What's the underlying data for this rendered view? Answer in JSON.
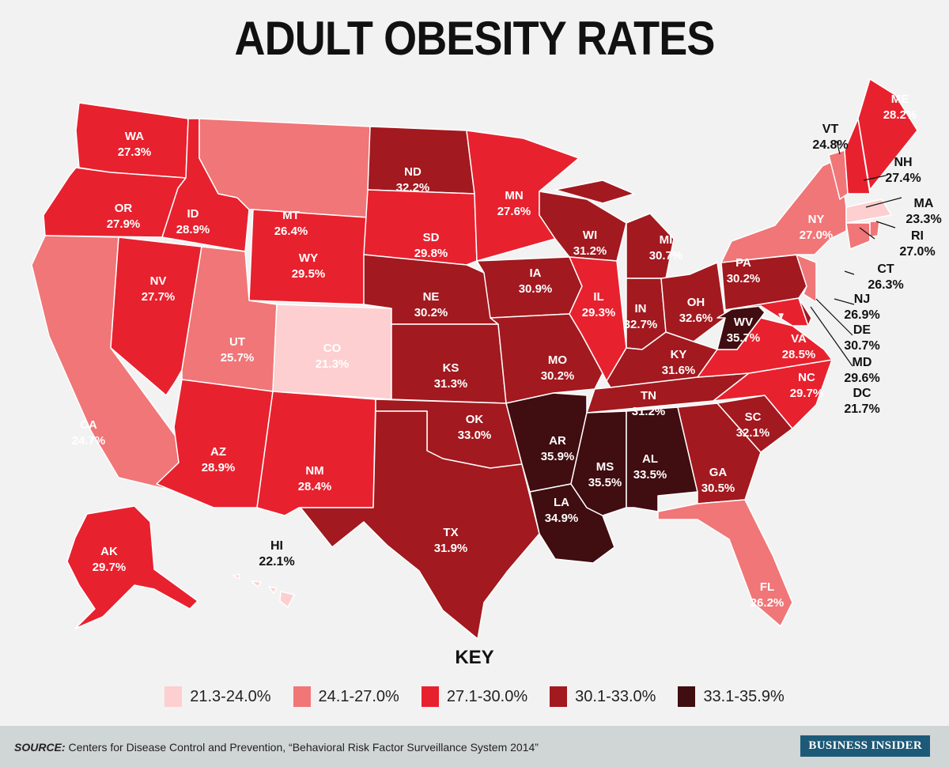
{
  "title": "ADULT OBESITY RATES",
  "key": {
    "title": "KEY",
    "bins": [
      {
        "label": "21.3-24.0%",
        "color": "#fdcfd0"
      },
      {
        "label": "24.1-27.0%",
        "color": "#f07678"
      },
      {
        "label": "27.1-30.0%",
        "color": "#e8212e"
      },
      {
        "label": "30.1-33.0%",
        "color": "#a2191f"
      },
      {
        "label": "33.1-35.9%",
        "color": "#400d10"
      }
    ]
  },
  "states": {
    "WA": {
      "code": "WA",
      "value": "27.3%",
      "bin": 2
    },
    "OR": {
      "code": "OR",
      "value": "27.9%",
      "bin": 2
    },
    "CA": {
      "code": "CA",
      "value": "24.7%",
      "bin": 1
    },
    "NV": {
      "code": "NV",
      "value": "27.7%",
      "bin": 2
    },
    "ID": {
      "code": "ID",
      "value": "28.9%",
      "bin": 2
    },
    "MT": {
      "code": "MT",
      "value": "26.4%",
      "bin": 1
    },
    "WY": {
      "code": "WY",
      "value": "29.5%",
      "bin": 2
    },
    "UT": {
      "code": "UT",
      "value": "25.7%",
      "bin": 1
    },
    "CO": {
      "code": "CO",
      "value": "21.3%",
      "bin": 0
    },
    "AZ": {
      "code": "AZ",
      "value": "28.9%",
      "bin": 2
    },
    "NM": {
      "code": "NM",
      "value": "28.4%",
      "bin": 2
    },
    "ND": {
      "code": "ND",
      "value": "32.2%",
      "bin": 3
    },
    "SD": {
      "code": "SD",
      "value": "29.8%",
      "bin": 2
    },
    "NE": {
      "code": "NE",
      "value": "30.2%",
      "bin": 3
    },
    "KS": {
      "code": "KS",
      "value": "31.3%",
      "bin": 3
    },
    "OK": {
      "code": "OK",
      "value": "33.0%",
      "bin": 3
    },
    "TX": {
      "code": "TX",
      "value": "31.9%",
      "bin": 3
    },
    "MN": {
      "code": "MN",
      "value": "27.6%",
      "bin": 2
    },
    "IA": {
      "code": "IA",
      "value": "30.9%",
      "bin": 3
    },
    "MO": {
      "code": "MO",
      "value": "30.2%",
      "bin": 3
    },
    "AR": {
      "code": "AR",
      "value": "35.9%",
      "bin": 4
    },
    "LA": {
      "code": "LA",
      "value": "34.9%",
      "bin": 4
    },
    "WI": {
      "code": "WI",
      "value": "31.2%",
      "bin": 3
    },
    "IL": {
      "code": "IL",
      "value": "29.3%",
      "bin": 2
    },
    "MI": {
      "code": "MI",
      "value": "30.7%",
      "bin": 3
    },
    "IN": {
      "code": "IN",
      "value": "32.7%",
      "bin": 3
    },
    "OH": {
      "code": "OH",
      "value": "32.6%",
      "bin": 3
    },
    "KY": {
      "code": "KY",
      "value": "31.6%",
      "bin": 3
    },
    "TN": {
      "code": "TN",
      "value": "31.2%",
      "bin": 3
    },
    "MS": {
      "code": "MS",
      "value": "35.5%",
      "bin": 4
    },
    "AL": {
      "code": "AL",
      "value": "33.5%",
      "bin": 4
    },
    "GA": {
      "code": "GA",
      "value": "30.5%",
      "bin": 3
    },
    "FL": {
      "code": "FL",
      "value": "26.2%",
      "bin": 1
    },
    "SC": {
      "code": "SC",
      "value": "32.1%",
      "bin": 3
    },
    "NC": {
      "code": "NC",
      "value": "29.7%",
      "bin": 2
    },
    "VA": {
      "code": "VA",
      "value": "28.5%",
      "bin": 2
    },
    "WV": {
      "code": "WV",
      "value": "35.7%",
      "bin": 4
    },
    "PA": {
      "code": "PA",
      "value": "30.2%",
      "bin": 3
    },
    "MD": {
      "code": "MD",
      "value": "29.6%",
      "bin": 2
    },
    "DE": {
      "code": "DE",
      "value": "30.7%",
      "bin": 3
    },
    "NJ": {
      "code": "NJ",
      "value": "26.9%",
      "bin": 1
    },
    "NY": {
      "code": "NY",
      "value": "27.0%",
      "bin": 1
    },
    "VT": {
      "code": "VT",
      "value": "24.8%",
      "bin": 1
    },
    "NH": {
      "code": "NH",
      "value": "27.4%",
      "bin": 2
    },
    "ME": {
      "code": "ME",
      "value": "28.2%",
      "bin": 2
    },
    "MA": {
      "code": "MA",
      "value": "23.3%",
      "bin": 0
    },
    "CT": {
      "code": "CT",
      "value": "26.3%",
      "bin": 1
    },
    "RI": {
      "code": "RI",
      "value": "27.0%",
      "bin": 1
    },
    "DC": {
      "code": "DC",
      "value": "21.7%",
      "bin": 0
    },
    "AK": {
      "code": "AK",
      "value": "29.7%",
      "bin": 2
    },
    "HI": {
      "code": "HI",
      "value": "22.1%",
      "bin": 0
    }
  },
  "footer": {
    "source_label": "SOURCE:",
    "source_text": " Centers for Disease Control and Prevention, “Behavioral Risk Factor Surveillance System 2014”",
    "brand": "BUSINESS INSIDER"
  }
}
